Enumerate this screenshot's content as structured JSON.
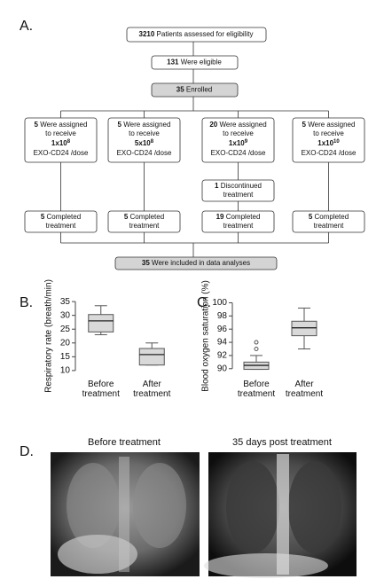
{
  "panels": {
    "a": "A.",
    "b": "B.",
    "c": "C.",
    "d": "D."
  },
  "flowchart": {
    "assessed": {
      "num": "3210",
      "text": "Patients assessed for eligibility"
    },
    "eligible": {
      "num": "131",
      "text": "Were eligible"
    },
    "enrolled": {
      "num": "35",
      "text": "Enrolled"
    },
    "arms": [
      {
        "num": "5",
        "line1": "Were assigned",
        "line2": "to receive",
        "dose_base": "1x10",
        "dose_exp": "8",
        "agent": "EXO-CD24 /dose"
      },
      {
        "num": "5",
        "line1": "Were assigned",
        "line2": "to receive",
        "dose_base": "5x10",
        "dose_exp": "8",
        "agent": "EXO-CD24 /dose"
      },
      {
        "num": "20",
        "line1": "Were assigned",
        "line2": "to receive",
        "dose_base": "1x10",
        "dose_exp": "9",
        "agent": "EXO-CD24 /dose"
      },
      {
        "num": "5",
        "line1": "Were assigned",
        "line2": "to receive",
        "dose_base": "1x10",
        "dose_exp": "10",
        "agent": "EXO-CD24 /dose"
      }
    ],
    "discontinued": {
      "num": "1",
      "line1": "Discontinued",
      "line2": "treatment"
    },
    "completed": [
      {
        "num": "5",
        "line1": "Completed",
        "line2": "treatment"
      },
      {
        "num": "5",
        "line1": "Completed",
        "line2": "treatment"
      },
      {
        "num": "19",
        "line1": "Completed",
        "line2": "treatment"
      },
      {
        "num": "5",
        "line1": "Completed",
        "line2": "treatment"
      }
    ],
    "analysed": {
      "num": "35",
      "text": "Were included in data analyses"
    }
  },
  "chart_data": [
    {
      "type": "box",
      "ylabel": "Respiratory rate (breath/min)",
      "categories": [
        "Before treatment",
        "After treatment"
      ],
      "ylim": [
        9,
        36
      ],
      "yticks": [
        10,
        15,
        20,
        25,
        30,
        35
      ],
      "color": "#d9d9d9",
      "boxes": [
        {
          "whislo": 23,
          "q1": 24,
          "med": 28,
          "q3": 30.3,
          "whishi": 33.5,
          "fliers": []
        },
        {
          "whislo": 12,
          "q1": 12,
          "med": 15.8,
          "q3": 18,
          "whishi": 20,
          "fliers": []
        }
      ]
    },
    {
      "type": "box",
      "ylabel": "Blood oxygen saturation (%)",
      "categories": [
        "Before treatment",
        "After treatment"
      ],
      "ylim": [
        89.3,
        100.6
      ],
      "yticks": [
        90,
        92,
        94,
        96,
        98,
        100
      ],
      "color": "#d9d9d9",
      "boxes": [
        {
          "whislo": 89.9,
          "q1": 89.9,
          "med": 90.5,
          "q3": 91,
          "whishi": 92,
          "fliers": [
            93,
            94
          ]
        },
        {
          "whislo": 93,
          "q1": 95,
          "med": 96.2,
          "q3": 97.2,
          "whishi": 99.2,
          "fliers": []
        }
      ]
    }
  ],
  "images": [
    {
      "title": "Before treatment"
    },
    {
      "title": "35 days post treatment"
    }
  ]
}
